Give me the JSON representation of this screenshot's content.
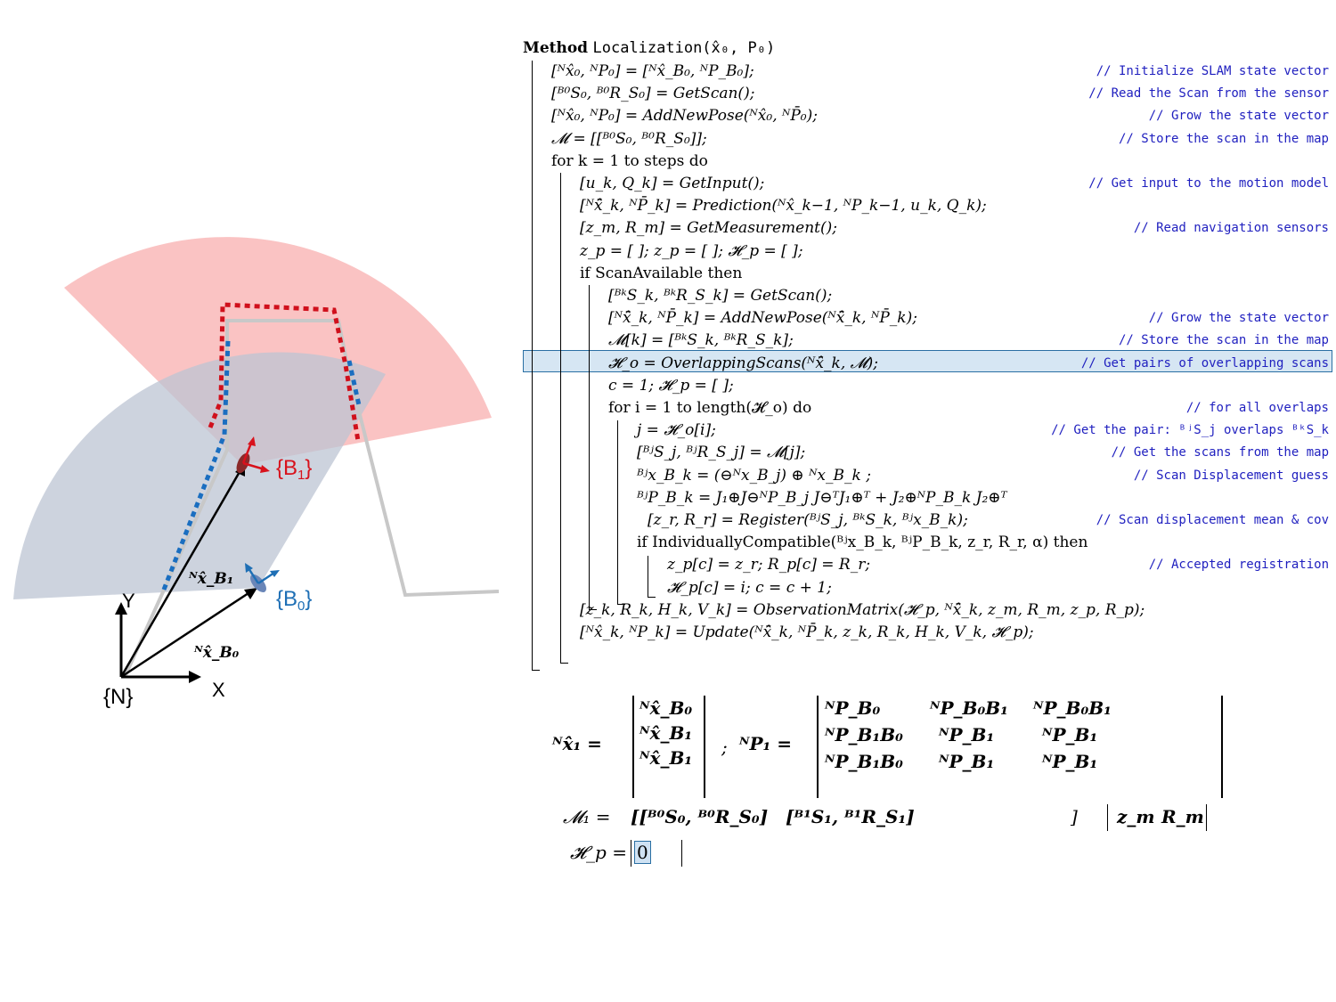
{
  "diagram": {
    "frames": {
      "N": "{N}",
      "B0": "{B",
      "B0_sub": "0",
      "B1": "{B",
      "B1_sub": "1",
      "close": "}"
    },
    "axes": {
      "x": "X",
      "y": "Y"
    },
    "vectors": {
      "to_B0": "ᴺx̂_B₀",
      "to_B1": "ᴺx̂_B₁"
    },
    "colors": {
      "red_sector": "#f9b9b9",
      "gray_sector": "#c4ccd9",
      "red_scan": "#d0101c",
      "blue_scan": "#1a6ec0",
      "blue_frame": "#1e6fb5",
      "red_frame": "#d8121c"
    }
  },
  "algorithm": {
    "title_kw": "Method",
    "title_sig": "Localization(x̂₀, P₀)",
    "lines": [
      {
        "code": "[ᴺx̂₀, ᴺP₀] = [ᴺx̂_B₀, ᴺP_B₀];",
        "comment": "// Initialize SLAM state vector"
      },
      {
        "code": "[ᴮ⁰S₀, ᴮ⁰R_S₀] = GetScan();",
        "comment": "// Read the Scan from the sensor"
      },
      {
        "code": "[ᴺx̂₀, ᴺP₀] = AddNewPose(ᴺx̂₀, ᴺP̄₀);",
        "comment": "// Grow the state vector"
      },
      {
        "code": "𝓜 = [[ᴮ⁰S₀, ᴮ⁰R_S₀]];",
        "comment": "// Store the scan in the map"
      },
      {
        "code": "for k = 1 to steps do",
        "comment": ""
      },
      {
        "code": "[u_k, Q_k] = GetInput();",
        "comment": "// Get input to the motion model"
      },
      {
        "code": "[ᴺx̂̄_k, ᴺP̄_k] = Prediction(ᴺx̂_k−1, ᴺP_k−1, u_k, Q_k);",
        "comment": ""
      },
      {
        "code": "[z_m, R_m] = GetMeasurement();",
        "comment": "// Read navigation sensors"
      },
      {
        "code": "z_p = [ ]; z_p = [ ]; 𝓗_p = [ ];",
        "comment": ""
      },
      {
        "code": "if ScanAvailable then",
        "comment": ""
      },
      {
        "code": "[ᴮᵏS_k, ᴮᵏR_S_k] = GetScan();",
        "comment": ""
      },
      {
        "code": "[ᴺx̂̄_k, ᴺP̄_k] = AddNewPose(ᴺx̂̄_k, ᴺP̄_k);",
        "comment": "// Grow the state vector"
      },
      {
        "code": "𝓜[k] = [ᴮᵏS_k, ᴮᵏR_S_k];",
        "comment": "// Store the scan in the map"
      },
      {
        "code": "𝓗_o = OverlappingScans(ᴺx̂̄_k, 𝓜);",
        "comment": "// Get pairs of overlapping scans"
      },
      {
        "code": "c = 1; 𝓗_p = [ ];",
        "comment": ""
      },
      {
        "code": "for i = 1 to length(𝓗_o) do",
        "comment": "// for all overlaps"
      },
      {
        "code": "j = 𝓗_o[i];",
        "comment": "// Get the pair:  ᴮʲS_j overlaps ᴮᵏS_k"
      },
      {
        "code": "[ᴮʲS_j, ᴮʲR_S_j] = 𝓜[j];",
        "comment": "// Get the scans from the map"
      },
      {
        "code": "ᴮʲx_B_k = (⊖ᴺx_B_j) ⊕ ᴺx_B_k ;",
        "comment": "// Scan Displacement guess"
      },
      {
        "code": "ᴮʲP_B_k = J₁⊕J⊖ᴺP_B_j J⊖ᵀJ₁⊕ᵀ + J₂⊕ᴺP_B_k J₂⊕ᵀ",
        "comment": ""
      },
      {
        "code": "[z_r, R_r] = Register(ᴮʲS_j, ᴮᵏS_k, ᴮʲx_B_k);",
        "comment": "// Scan displacement mean & cov"
      },
      {
        "code": "if IndividuallyCompatible(ᴮʲx_B_k, ᴮʲP_B_k, z_r, R_r, α) then",
        "comment": ""
      },
      {
        "code": "z_p[c] = z_r;  R_p[c] = R_r;",
        "comment": "// Accepted registration"
      },
      {
        "code": "𝓗_p[c] = i; c = c + 1;",
        "comment": ""
      },
      {
        "code": "[z_k, R_k, H_k, V_k] = ObservationMatrix(𝓗_p, ᴺx̂̄_k, z_m, R_m, z_p, R_p);",
        "comment": ""
      },
      {
        "code": "[ᴺx̂_k, ᴺP_k] = Update(ᴺx̂̄_k, ᴺP̄_k, z_k, R_k, H_k, V_k, 𝓗_p);",
        "comment": ""
      }
    ]
  },
  "state": {
    "x_lhs": "ᴺx̂₁ =",
    "x_rows": [
      "ᴺx̂_B₀",
      "ᴺx̂_B₁",
      "ᴺx̂_B₁"
    ],
    "sep": ";",
    "p_lhs": "ᴺP₁ =",
    "p_rows": [
      [
        "ᴺP_B₀",
        "ᴺP_B₀B₁",
        "ᴺP_B₀B₁"
      ],
      [
        "ᴺP_B₁B₀",
        "ᴺP_B₁",
        "ᴺP_B₁"
      ],
      [
        "ᴺP_B₁B₀",
        "ᴺP_B₁",
        "ᴺP_B₁"
      ]
    ],
    "map_lhs": "𝓜₁ =",
    "map_entries": [
      "[[ᴮ⁰S₀, ᴮ⁰R_S₀]",
      "[ᴮ¹S₁, ᴮ¹R_S₁]",
      "]"
    ],
    "meas": [
      "z_m",
      "R_m"
    ],
    "hp_lhs": "𝓗_p =",
    "hp_value": "0"
  }
}
